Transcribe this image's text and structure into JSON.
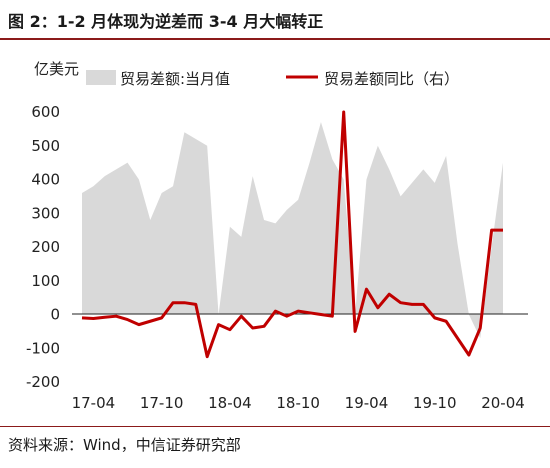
{
  "title": "图 2：1-2 月体现为逆差而 3-4 月大幅转正",
  "source": "资料来源：Wind，中信证券研究部",
  "chart_data": {
    "type": "area+line",
    "y_unit_label": "亿美元",
    "ylim": [
      -200,
      600
    ],
    "yticks": [
      "600",
      "500",
      "400",
      "300",
      "200",
      "100",
      "0",
      "-100",
      "-200"
    ],
    "xticks": [
      "17-04",
      "17-10",
      "18-04",
      "18-10",
      "19-04",
      "19-10",
      "20-04"
    ],
    "x": [
      "17-03",
      "17-04",
      "17-05",
      "17-06",
      "17-07",
      "17-08",
      "17-09",
      "17-10",
      "17-11",
      "17-12",
      "18-01",
      "18-02",
      "18-03",
      "18-04",
      "18-05",
      "18-06",
      "18-07",
      "18-08",
      "18-09",
      "18-10",
      "18-11",
      "18-12",
      "19-01",
      "19-02",
      "19-03",
      "19-04",
      "19-05",
      "19-06",
      "19-07",
      "19-08",
      "19-09",
      "19-10",
      "19-11",
      "19-12",
      "20-01",
      "20-02",
      "20-03",
      "20-04"
    ],
    "series": [
      {
        "name": "贸易差额:当月值",
        "type": "area",
        "color": "#d9d9d9",
        "values": [
          360,
          380,
          410,
          430,
          450,
          400,
          280,
          360,
          380,
          540,
          520,
          500,
          0,
          260,
          230,
          410,
          280,
          270,
          310,
          340,
          450,
          570,
          460,
          400,
          0,
          400,
          500,
          430,
          350,
          390,
          430,
          390,
          470,
          210,
          0,
          -70,
          200,
          450
        ]
      },
      {
        "name": "贸易差额同比（右）",
        "type": "line",
        "color": "#c00000",
        "values": [
          -10,
          -12,
          -8,
          -5,
          -15,
          -30,
          -20,
          -10,
          35,
          35,
          30,
          -125,
          -30,
          -45,
          -5,
          -40,
          -35,
          10,
          -5,
          10,
          5,
          0,
          -5,
          600,
          -50,
          75,
          20,
          60,
          35,
          30,
          30,
          -10,
          -20,
          -70,
          -120,
          -40,
          250,
          250
        ]
      }
    ],
    "legend": "top"
  }
}
